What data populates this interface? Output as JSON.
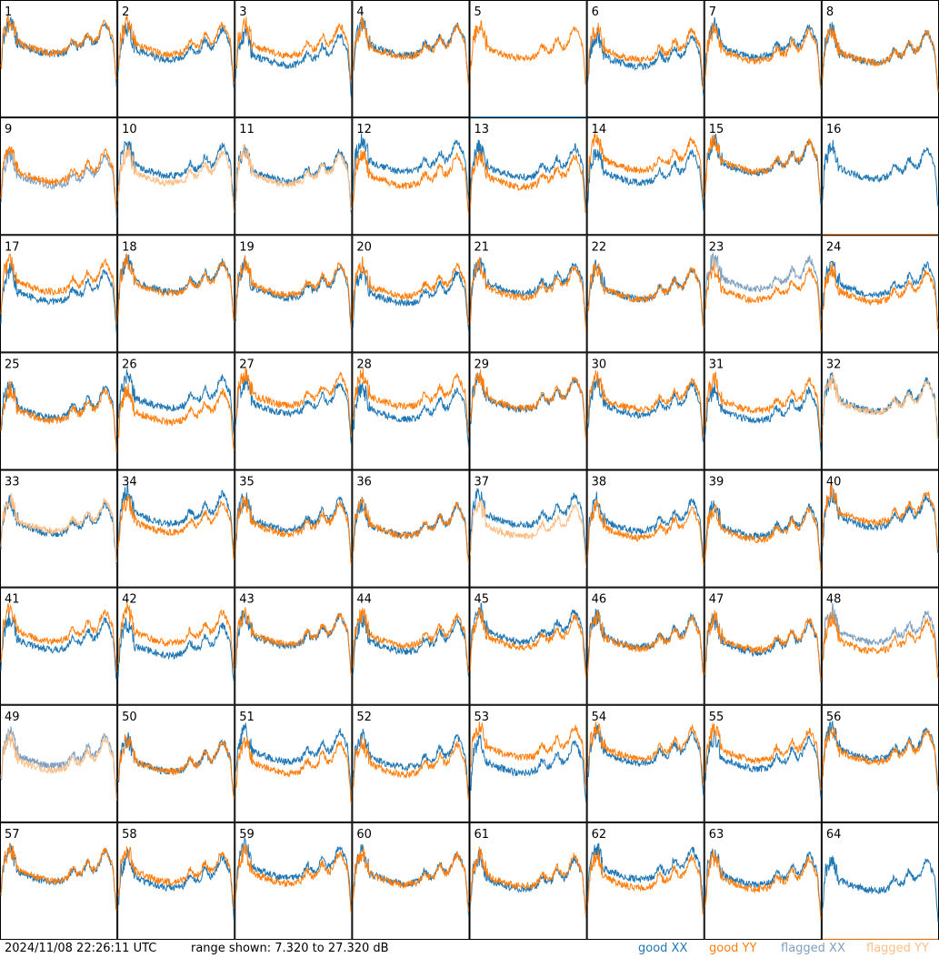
{
  "chart_data": {
    "type": "line",
    "layout": "8x8 grid of small multiples",
    "panels": [
      "1",
      "2",
      "3",
      "4",
      "5",
      "6",
      "7",
      "8",
      "9",
      "10",
      "11",
      "12",
      "13",
      "14",
      "15",
      "16",
      "17",
      "18",
      "19",
      "20",
      "21",
      "22",
      "23",
      "24",
      "25",
      "26",
      "27",
      "28",
      "29",
      "30",
      "31",
      "32",
      "33",
      "34",
      "35",
      "36",
      "37",
      "38",
      "39",
      "40",
      "41",
      "42",
      "43",
      "44",
      "45",
      "46",
      "47",
      "48",
      "49",
      "50",
      "51",
      "52",
      "53",
      "54",
      "55",
      "56",
      "57",
      "58",
      "59",
      "60",
      "61",
      "62",
      "63",
      "64"
    ],
    "ylim_db": [
      7.32,
      27.32
    ],
    "series": [
      {
        "name": "good XX",
        "color": "#1f77b4"
      },
      {
        "name": "good YY",
        "color": "#ff7f0e"
      },
      {
        "name": "flagged XX",
        "color": "#7f9fbf"
      },
      {
        "name": "flagged YY",
        "color": "#ffbe86"
      }
    ],
    "flagged_xx_panels": [
      "9",
      "23",
      "48",
      "49"
    ],
    "flagged_yy_panels": [
      "10",
      "11",
      "32",
      "33",
      "37",
      "49"
    ],
    "flat_xx_panels": [
      "5"
    ],
    "flat_yy_panels": [
      "16",
      "64"
    ]
  },
  "footer": {
    "timestamp": "2024/11/08 22:26:11 UTC",
    "range_text": "range shown: 7.320 to 27.320 dB",
    "legend": [
      "good XX",
      "good YY",
      "flagged XX",
      "flagged YY"
    ]
  }
}
